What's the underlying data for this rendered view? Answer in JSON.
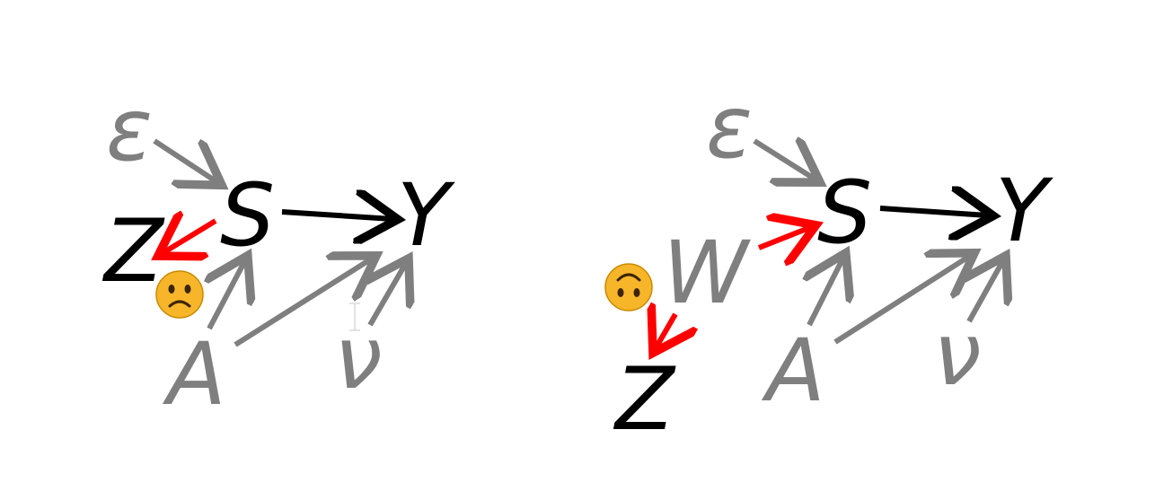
{
  "left_diagram": {
    "nodes": {
      "epsilon": "ε",
      "S": "S",
      "Y": "Y",
      "Z": "Z",
      "A": "A",
      "nu": "ν"
    },
    "face": "slightly-frowning-face"
  },
  "right_diagram": {
    "nodes": {
      "epsilon": "ε",
      "S": "S",
      "Y": "Y",
      "W": "W",
      "Z": "Z",
      "A": "A",
      "nu": "ν"
    },
    "face": "upside-down-face"
  },
  "colors": {
    "observed": "#000000",
    "latent": "#7f7f7f",
    "highlight": "#ff0000",
    "emoji": "#f7b52a"
  }
}
